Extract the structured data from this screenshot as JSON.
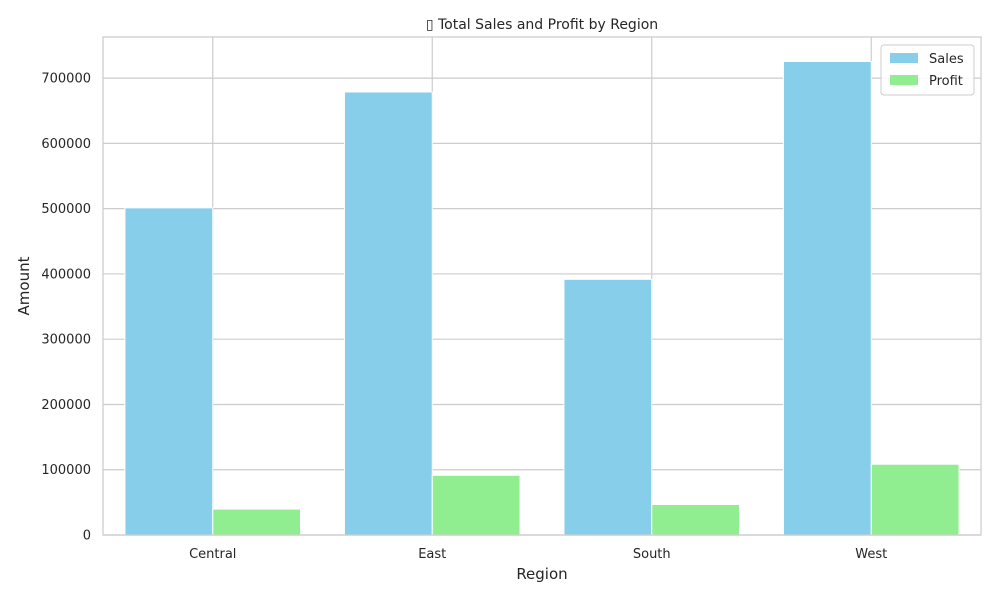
{
  "chart_data": {
    "type": "bar",
    "title": "▯ Total Sales and Profit by Region",
    "xlabel": "Region",
    "ylabel": "Amount",
    "categories": [
      "Central",
      "East",
      "South",
      "West"
    ],
    "series": [
      {
        "name": "Sales",
        "color": "#87CEEB",
        "values": [
          501240,
          678781,
          391722,
          725458
        ]
      },
      {
        "name": "Profit",
        "color": "#90EE90",
        "values": [
          39706,
          91523,
          46749,
          108418
        ]
      }
    ],
    "ylim": [
      0,
      763000
    ],
    "yticks": [
      0,
      100000,
      200000,
      300000,
      400000,
      500000,
      600000,
      700000
    ],
    "ytick_labels": [
      "0",
      "100000",
      "200000",
      "300000",
      "400000",
      "500000",
      "600000",
      "700000"
    ],
    "grid": true,
    "legend_position": "top-right"
  }
}
